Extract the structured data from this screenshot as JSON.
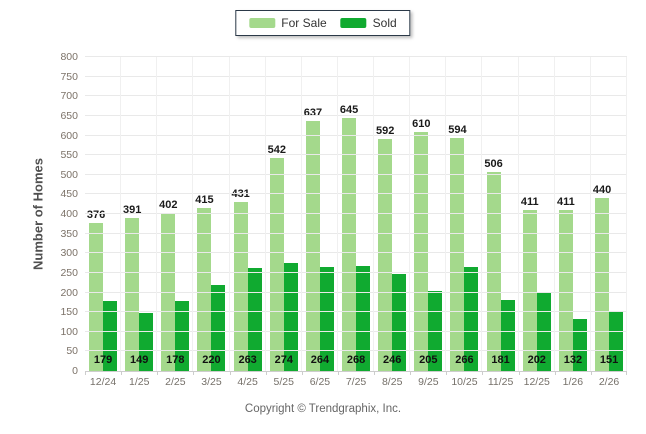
{
  "legend": {
    "for_sale_color": "#a4d98c",
    "sold_color": "#10aa30"
  },
  "y_axis": {
    "title": "Number of Homes"
  },
  "footer": {
    "copyright": "Copyright © Trendgraphix, Inc."
  },
  "chart_data": {
    "type": "bar",
    "title": "",
    "categories": [
      "12/24",
      "1/25",
      "2/25",
      "3/25",
      "4/25",
      "5/25",
      "6/25",
      "7/25",
      "8/25",
      "9/25",
      "10/25",
      "11/25",
      "12/25",
      "1/26",
      "2/26"
    ],
    "series": [
      {
        "name": "For Sale",
        "color": "#a4d98c",
        "values": [
          376,
          391,
          402,
          415,
          431,
          542,
          637,
          645,
          592,
          610,
          594,
          506,
          411,
          411,
          440
        ]
      },
      {
        "name": "Sold",
        "color": "#10aa30",
        "values": [
          179,
          149,
          178,
          220,
          263,
          274,
          264,
          268,
          246,
          205,
          266,
          181,
          202,
          132,
          151
        ]
      }
    ],
    "xlabel": "",
    "ylabel": "Number of Homes",
    "ylim": [
      0,
      800
    ],
    "ytick_step": 50,
    "grid": true,
    "legend_position": "top-center"
  }
}
